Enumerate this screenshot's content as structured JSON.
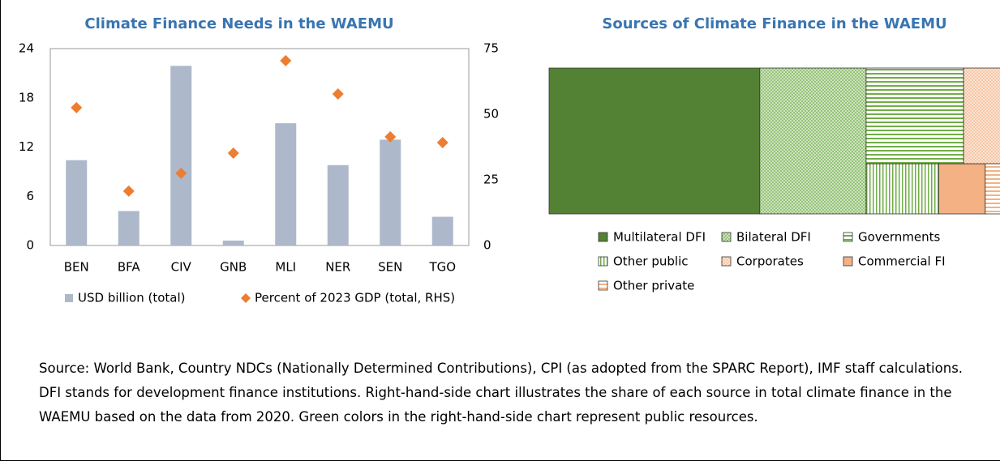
{
  "chart_data": [
    {
      "type": "bar",
      "title": "Climate Finance Needs in the WAEMU",
      "categories": [
        "BEN",
        "BFA",
        "CIV",
        "GNB",
        "MLI",
        "NER",
        "SEN",
        "TGO"
      ],
      "series": [
        {
          "name": "USD billion (total)",
          "color": "#adb9ca",
          "marker": "bar",
          "values": [
            10.4,
            4.2,
            21.9,
            0.6,
            14.9,
            9.8,
            12.9,
            3.5
          ]
        },
        {
          "name": "Percent of 2023 GDP (total, RHS)",
          "color": "#ed7d31",
          "marker": "diamond",
          "axis": "y2",
          "values": [
            52.5,
            20.7,
            27.5,
            35.2,
            70.4,
            57.7,
            41.4,
            39.2
          ]
        }
      ],
      "ylim": [
        0,
        24
      ],
      "yticks": [
        0,
        6,
        12,
        18,
        24
      ],
      "y2lim": [
        0,
        75
      ],
      "y2ticks": [
        0,
        25,
        50,
        75
      ]
    },
    {
      "type": "treemap",
      "title": "Sources of Climate Finance in the WAEMU",
      "categories": [
        "Multilateral DFI",
        "Bilateral DFI",
        "Governments",
        "Other public",
        "Corporates",
        "Commercial FI",
        "Other private"
      ],
      "values": [
        44.8,
        22.6,
        13.6,
        5.3,
        7.8,
        3.4,
        2.5
      ],
      "colors": [
        "#548235",
        "#70ad47",
        "#70ad47",
        "#70ad47",
        "#f4b183",
        "#f4b183",
        "#f4b183"
      ],
      "patterns": [
        "solid",
        "dots",
        "hlines",
        "vlines",
        "dots",
        "solid",
        "hlines"
      ]
    }
  ],
  "note": "Source: World Bank, Country NDCs (Nationally Determined Contributions), CPI (as adopted from the SPARC Report), IMF staff calculations. DFI stands for development finance institutions. Right-hand-side chart illustrates the share of each source in total climate finance in the WAEMU based on the data from 2020. Green colors in the right-hand-side chart represent public resources."
}
